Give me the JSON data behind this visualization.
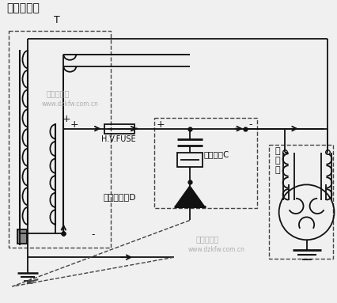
{
  "title": "高压变压器",
  "subtitle_T": "T",
  "watermark1": "电子开发网",
  "watermark2": "www.dzkfw.com.cn",
  "watermark3": "电子开发网",
  "watermark4": "www.dzkfw.com.cn",
  "label_fuse": "H.V.FUSE",
  "label_cap": "高压电容C",
  "label_diode": "高压二极管D",
  "label_magnetron": "磁\n控\n管",
  "bg_color": "#f0f0f0",
  "line_color": "#111111",
  "dash_color": "#444444"
}
